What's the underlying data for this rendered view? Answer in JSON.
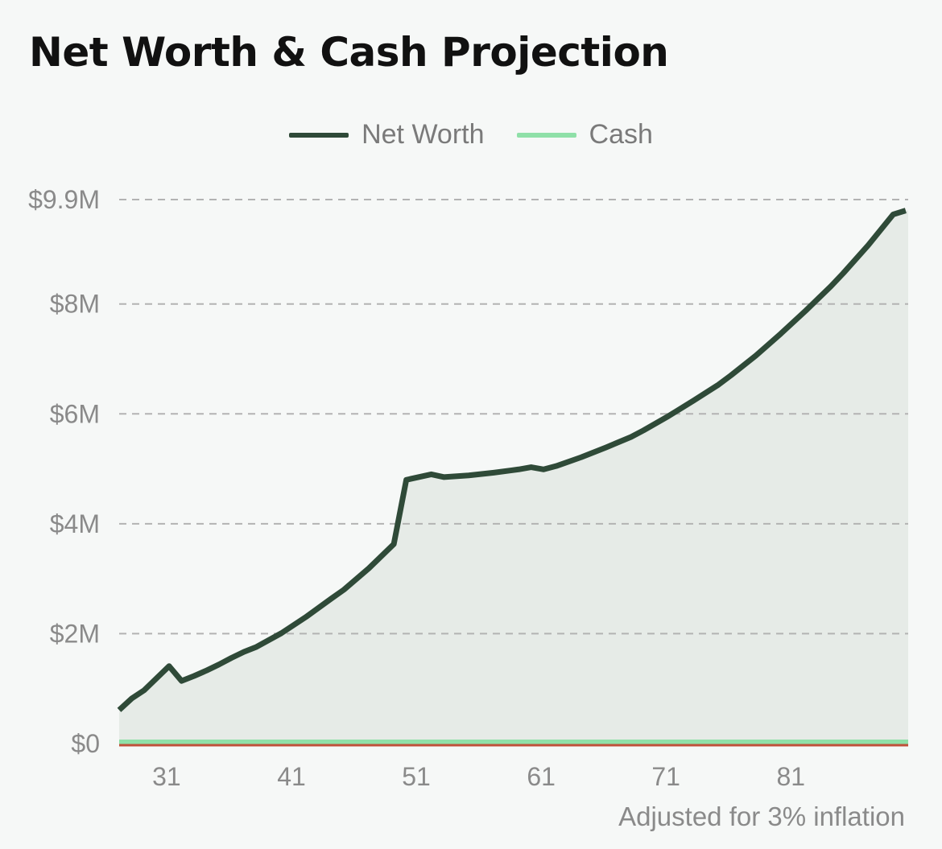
{
  "title": "Net Worth & Cash Projection",
  "footnote": "Adjusted for 3% inflation",
  "legend": [
    {
      "label": "Net Worth",
      "color": "#2f4a38"
    },
    {
      "label": "Cash",
      "color": "#8fe0a8"
    }
  ],
  "chart_data": {
    "type": "area",
    "title": "Net Worth & Cash Projection",
    "xlabel": "",
    "ylabel": "",
    "xlim": [
      27.2,
      90.4
    ],
    "ylim": [
      0,
      9900000
    ],
    "y_ticks": [
      {
        "value": 0,
        "label": "$0"
      },
      {
        "value": 2000000,
        "label": "$2M"
      },
      {
        "value": 4000000,
        "label": "$4M"
      },
      {
        "value": 6000000,
        "label": "$6M"
      },
      {
        "value": 8000000,
        "label": "$8M"
      },
      {
        "value": 9900000,
        "label": "$9.9M"
      }
    ],
    "x_ticks": [
      31,
      41,
      51,
      61,
      71,
      81
    ],
    "grid": true,
    "legend_position": "top-center",
    "zero_line_color": "#c0503a",
    "series": [
      {
        "name": "Net Worth",
        "color": "#2f4a38",
        "fill": "#e6ebe7",
        "x": [
          27.2,
          28.2,
          29.2,
          30.2,
          31.2,
          32.2,
          33.2,
          34.2,
          35.2,
          36.2,
          37.2,
          38.2,
          40.2,
          42.2,
          44.2,
          45.2,
          47.2,
          49.2,
          50.2,
          52.2,
          53.2,
          55.2,
          57.2,
          59.2,
          60.2,
          61.2,
          62.2,
          64.2,
          66.2,
          68.2,
          69.2,
          71.2,
          73.2,
          75.2,
          76.2,
          78.2,
          80.2,
          82.2,
          84.2,
          85.2,
          87.2,
          89.2,
          90.2
        ],
        "values": [
          610000,
          820000,
          970000,
          1190000,
          1410000,
          1140000,
          1230000,
          1330000,
          1440000,
          1560000,
          1670000,
          1760000,
          2010000,
          2310000,
          2640000,
          2800000,
          3190000,
          3630000,
          4800000,
          4900000,
          4850000,
          4880000,
          4930000,
          4990000,
          5030000,
          4990000,
          5050000,
          5210000,
          5390000,
          5580000,
          5700000,
          5960000,
          6240000,
          6530000,
          6700000,
          7060000,
          7460000,
          7880000,
          8320000,
          8560000,
          9070000,
          9630000,
          9700000
        ]
      },
      {
        "name": "Cash",
        "color": "#8fe0a8",
        "x": [
          27.2,
          90.4
        ],
        "values": [
          30000,
          30000
        ]
      }
    ]
  }
}
